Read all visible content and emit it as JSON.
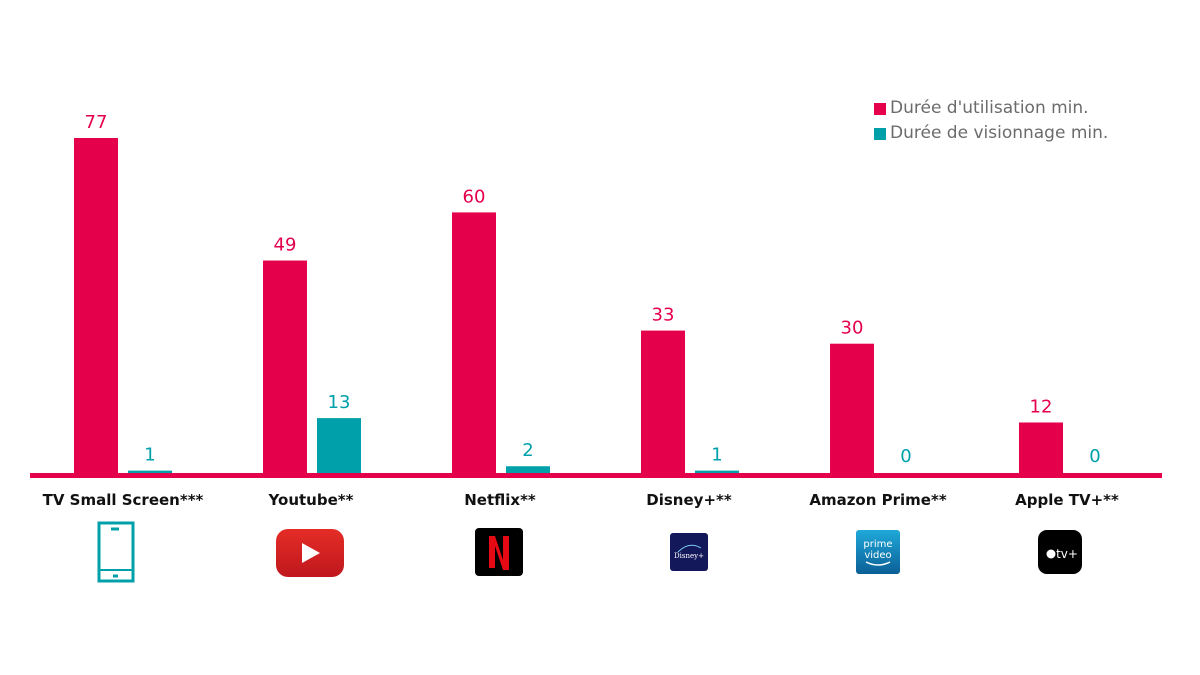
{
  "chart_data": {
    "type": "bar",
    "categories": [
      "TV Small Screen***",
      "Youtube**",
      "Netflix**",
      "Disney+**",
      "Amazon Prime**",
      "Apple TV+**"
    ],
    "series": [
      {
        "name": "Durée d'utilisation min.",
        "color": "#e4004b",
        "values": [
          77,
          49,
          60,
          33,
          30,
          12
        ]
      },
      {
        "name": "Durée de visionnage min.",
        "color": "#00a0aa",
        "values": [
          1,
          13,
          2,
          1,
          0,
          0
        ]
      }
    ],
    "ylim": [
      0,
      80
    ],
    "grid": false,
    "legend_position": "top-right",
    "data_labels": true,
    "category_icons": [
      "smartphone-icon",
      "youtube-icon",
      "netflix-icon",
      "disney-plus-icon",
      "prime-video-icon",
      "apple-tv-icon"
    ],
    "icon_text": {
      "prime": "prime",
      "video": "video",
      "apple": "tv+",
      "disney": "Disney+"
    }
  }
}
